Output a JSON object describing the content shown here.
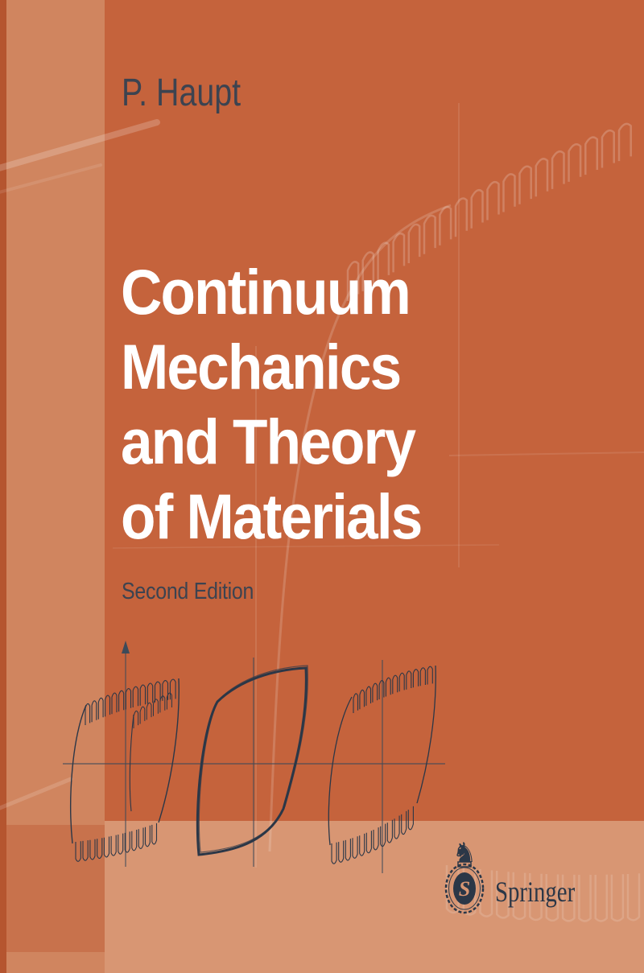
{
  "cover": {
    "author": "P. Haupt",
    "title_lines": [
      "Continuum",
      "Mechanics",
      "and Theory",
      "of Materials"
    ],
    "edition": "Second Edition",
    "publisher": "Springer",
    "logo_monogram": "S",
    "icons": {
      "springer_knight": "♞"
    },
    "colors": {
      "base": "#c5633c",
      "left_strip": "#d0855f",
      "left_edge": "#b5552f",
      "left_patch": "#c8724c",
      "bottom_band": "#d89673",
      "title_text": "#ffffff",
      "secondary_text": "#3c4350",
      "ink": "#2b3747"
    },
    "figures": {
      "type": "hysteresis-loops",
      "count": 3,
      "loop_styles": [
        "serrated",
        "smooth",
        "serrated"
      ]
    }
  }
}
